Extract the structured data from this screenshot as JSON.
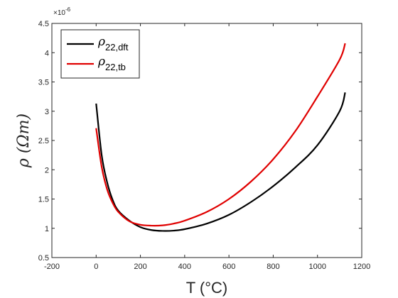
{
  "chart_data": {
    "type": "line",
    "xlabel": "T (°C)",
    "ylabel": "ρ (Ωm)",
    "xlim": [
      -200,
      1200
    ],
    "ylim": [
      0.5,
      4.5
    ],
    "y_exponent_label": "×10^-6",
    "x_ticks": [
      -200,
      0,
      200,
      400,
      600,
      800,
      1000,
      1200
    ],
    "y_ticks": [
      0.5,
      1,
      1.5,
      2,
      2.5,
      3,
      3.5,
      4,
      4.5
    ],
    "x_tick_labels": [
      "-200",
      "0",
      "200",
      "400",
      "600",
      "800",
      "1000",
      "1200"
    ],
    "y_tick_labels": [
      "0.5",
      "1",
      "1.5",
      "2",
      "2.5",
      "3",
      "3.5",
      "4",
      "4.5"
    ],
    "grid": false,
    "legend_position": "top-left",
    "series": [
      {
        "name": "ρ22,dft",
        "name_main": "ρ",
        "name_sub": "22,dft",
        "color": "#000000",
        "x": [
          0,
          25,
          50,
          75,
          100,
          150,
          200,
          250,
          300,
          350,
          400,
          500,
          600,
          700,
          800,
          900,
          1000,
          1100,
          1125
        ],
        "y": [
          3.13,
          2.25,
          1.78,
          1.48,
          1.3,
          1.13,
          1.02,
          0.97,
          0.955,
          0.96,
          0.985,
          1.08,
          1.23,
          1.45,
          1.72,
          2.04,
          2.42,
          3.0,
          3.32
        ]
      },
      {
        "name": "ρ22,tb",
        "name_main": "ρ",
        "name_sub": "22,tb",
        "color": "#e00000",
        "x": [
          0,
          25,
          50,
          75,
          100,
          150,
          200,
          250,
          300,
          350,
          400,
          500,
          600,
          700,
          800,
          900,
          1000,
          1100,
          1125
        ],
        "y": [
          2.71,
          2.05,
          1.66,
          1.43,
          1.28,
          1.12,
          1.06,
          1.045,
          1.05,
          1.08,
          1.13,
          1.28,
          1.5,
          1.8,
          2.18,
          2.66,
          3.25,
          3.88,
          4.16
        ]
      }
    ]
  }
}
